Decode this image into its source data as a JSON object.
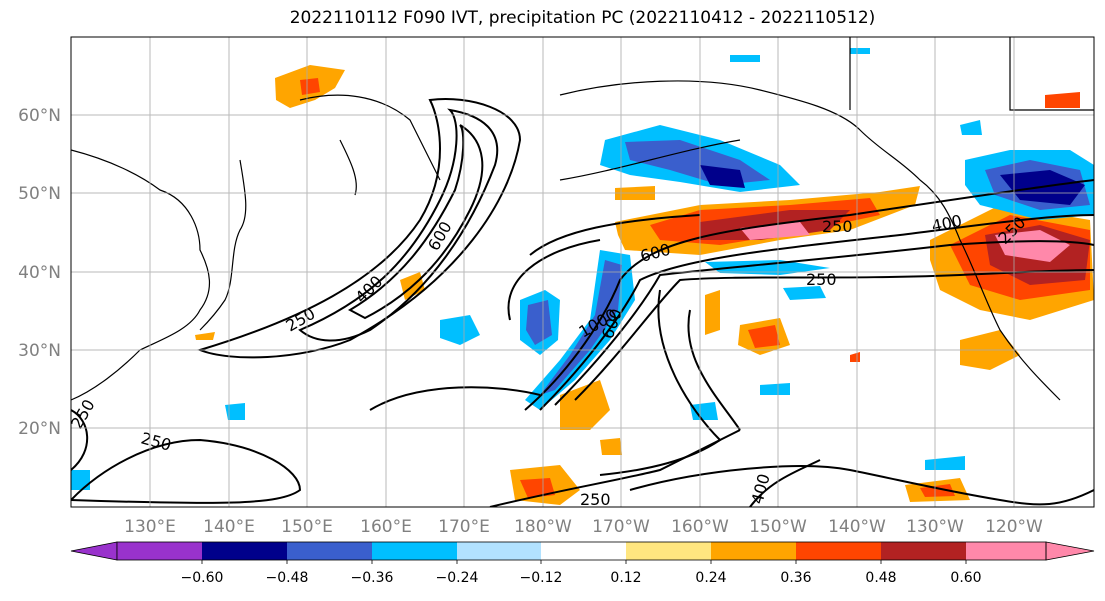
{
  "chart_data": {
    "type": "heatmap",
    "title": "2022110112 F090 IVT, precipitation PC (2022110412 - 2022110512)",
    "xlabel": "",
    "ylabel": "",
    "grid": true,
    "x_ticks": [
      "130°E",
      "140°E",
      "150°E",
      "160°E",
      "170°E",
      "180°W",
      "170°W",
      "160°W",
      "150°W",
      "140°W",
      "130°W",
      "120°W"
    ],
    "y_ticks": [
      "20°N",
      "30°N",
      "40°N",
      "50°N",
      "60°N"
    ],
    "colorbar": {
      "levels": [
        -0.6,
        -0.48,
        -0.36,
        -0.24,
        -0.12,
        0.12,
        0.24,
        0.36,
        0.48,
        0.6
      ],
      "labels": [
        "−0.60",
        "−0.48",
        "−0.36",
        "−0.24",
        "−0.12",
        "0.12",
        "0.24",
        "0.36",
        "0.48",
        "0.60"
      ],
      "colors": [
        "#9932cc",
        "#00008b",
        "#3a5fcd",
        "#00bfff",
        "#b2e2ff",
        "#ffffff",
        "#ffe680",
        "#ffa500",
        "#ff4500",
        "#b22222",
        "#ff88aa"
      ]
    },
    "contour_labels": [
      "250",
      "400",
      "600",
      "250",
      "600",
      "400",
      "250",
      "1000",
      "600",
      "250",
      "250",
      "250",
      "400",
      "250"
    ]
  }
}
